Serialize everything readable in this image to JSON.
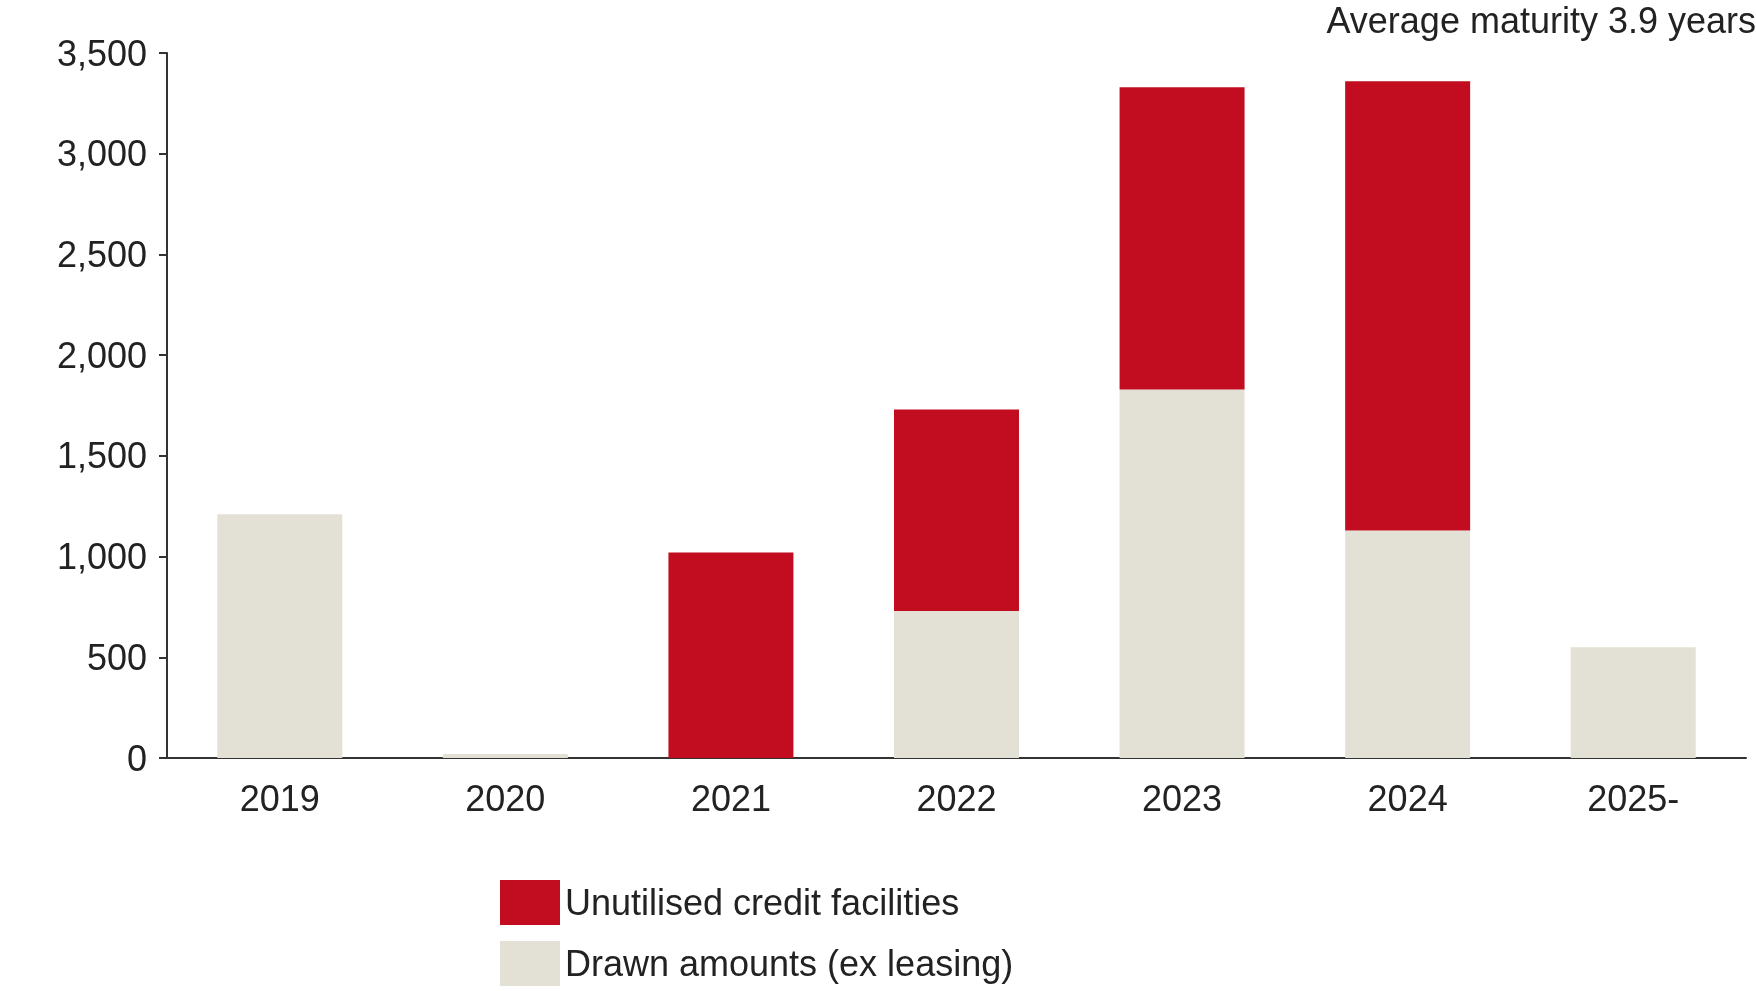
{
  "chart_data": {
    "type": "bar",
    "stacked": true,
    "annotations": [
      "Average maturity 3.9 years"
    ],
    "categories": [
      "2019",
      "2020",
      "2021",
      "2022",
      "2023",
      "2024",
      "2025-"
    ],
    "series": [
      {
        "name": "Drawn amounts (ex leasing)",
        "color": "#e3e1d5",
        "values": [
          1210,
          20,
          0,
          730,
          1830,
          1130,
          550
        ]
      },
      {
        "name": "Unutilised credit facilities",
        "color": "#c10d1f",
        "values": [
          0,
          0,
          1020,
          1000,
          1500,
          2230,
          0
        ]
      }
    ],
    "ylim": [
      0,
      3500
    ],
    "yticks": [
      0,
      500,
      {
        "value": 1000,
        "label": "1,000"
      },
      {
        "value": 1500,
        "label": "1,500"
      },
      {
        "value": 2000,
        "label": "2,000"
      },
      {
        "value": 2500,
        "label": "2,500"
      },
      {
        "value": 3000,
        "label": "3,000"
      },
      {
        "value": 3500,
        "label": "3,500"
      }
    ],
    "grid": false,
    "legend": "bottom"
  }
}
